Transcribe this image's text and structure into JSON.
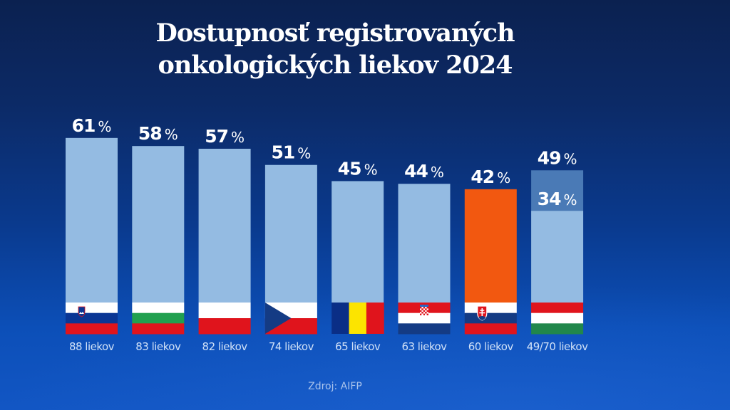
{
  "title_lines": [
    "Dostupnosť registrovaných",
    "onkologických liekov 2024"
  ],
  "source": "Zdroj: AIFP",
  "colors": {
    "bar": "#94bbe2",
    "bar_highlight": "#f25810",
    "bar_extension": "#4a7ab6",
    "text": "#ffffff",
    "label": "#cfe0f7"
  },
  "chart_data": {
    "type": "bar",
    "title": "Dostupnosť registrovaných onkologických liekov 2024",
    "xlabel": "",
    "ylabel": "",
    "ylim": [
      0,
      70
    ],
    "grid": false,
    "unit": "%",
    "categories": [
      "88 liekov",
      "83 liekov",
      "82 liekov",
      "74 liekov",
      "65 liekov",
      "63 liekov",
      "60 liekov",
      "49/70 liekov"
    ],
    "countries": [
      "Slovinsko",
      "Bulharsko",
      "Poľsko",
      "Česko",
      "Rumunsko",
      "Chorvátsko",
      "Slovensko",
      "Maďarsko"
    ],
    "flags": [
      "slovenia-flag-icon",
      "bulgaria-flag-icon",
      "poland-flag-icon",
      "czechia-flag-icon",
      "romania-flag-icon",
      "croatia-flag-icon",
      "slovakia-flag-icon",
      "hungary-flag-icon"
    ],
    "values": [
      61,
      58,
      57,
      51,
      45,
      44,
      42,
      34
    ],
    "labels": [
      "61",
      "58",
      "57",
      "51",
      "45",
      "44",
      "42",
      "34"
    ],
    "extension": {
      "index": 7,
      "value": 49,
      "label": "49"
    },
    "highlight_index": 6
  }
}
